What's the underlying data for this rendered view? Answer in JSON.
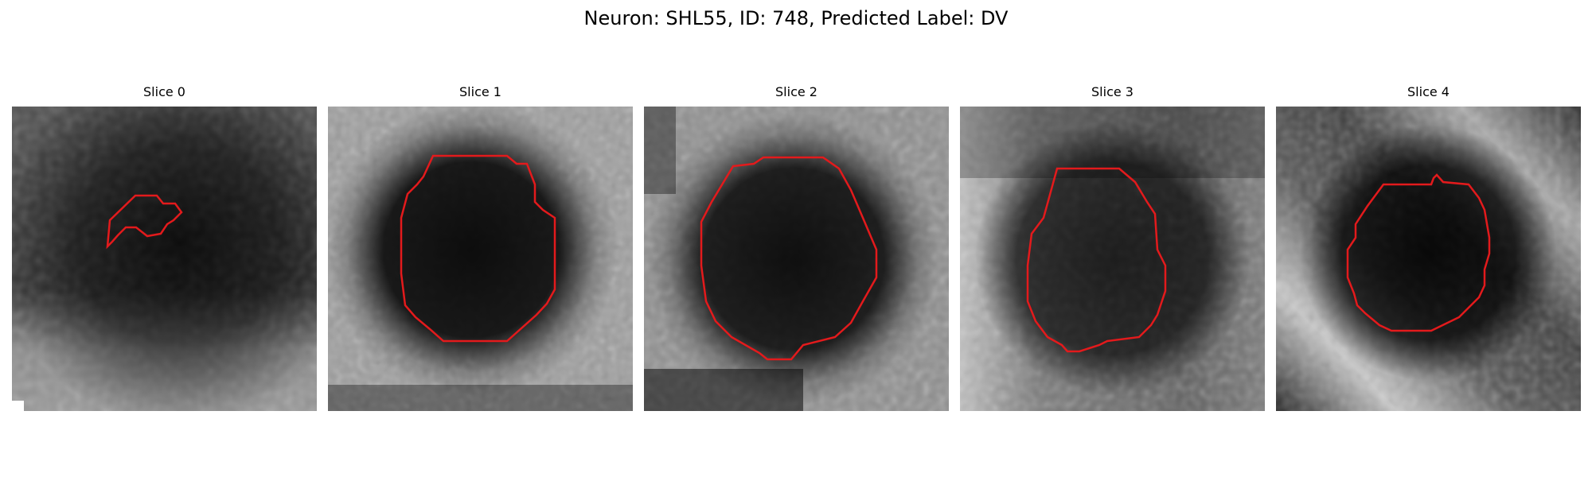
{
  "figure": {
    "title": "Neuron: SHL55, ID: 748, Predicted Label: DV"
  },
  "panels": [
    {
      "title": "Slice 0",
      "contour_color": "#e31a1c",
      "colormap": "gray"
    },
    {
      "title": "Slice 1",
      "contour_color": "#e31a1c",
      "colormap": "gray"
    },
    {
      "title": "Slice 2",
      "contour_color": "#e31a1c",
      "colormap": "gray"
    },
    {
      "title": "Slice 3",
      "contour_color": "#e31a1c",
      "colormap": "gray"
    },
    {
      "title": "Slice 4",
      "contour_color": "#e31a1c",
      "colormap": "gray"
    }
  ]
}
